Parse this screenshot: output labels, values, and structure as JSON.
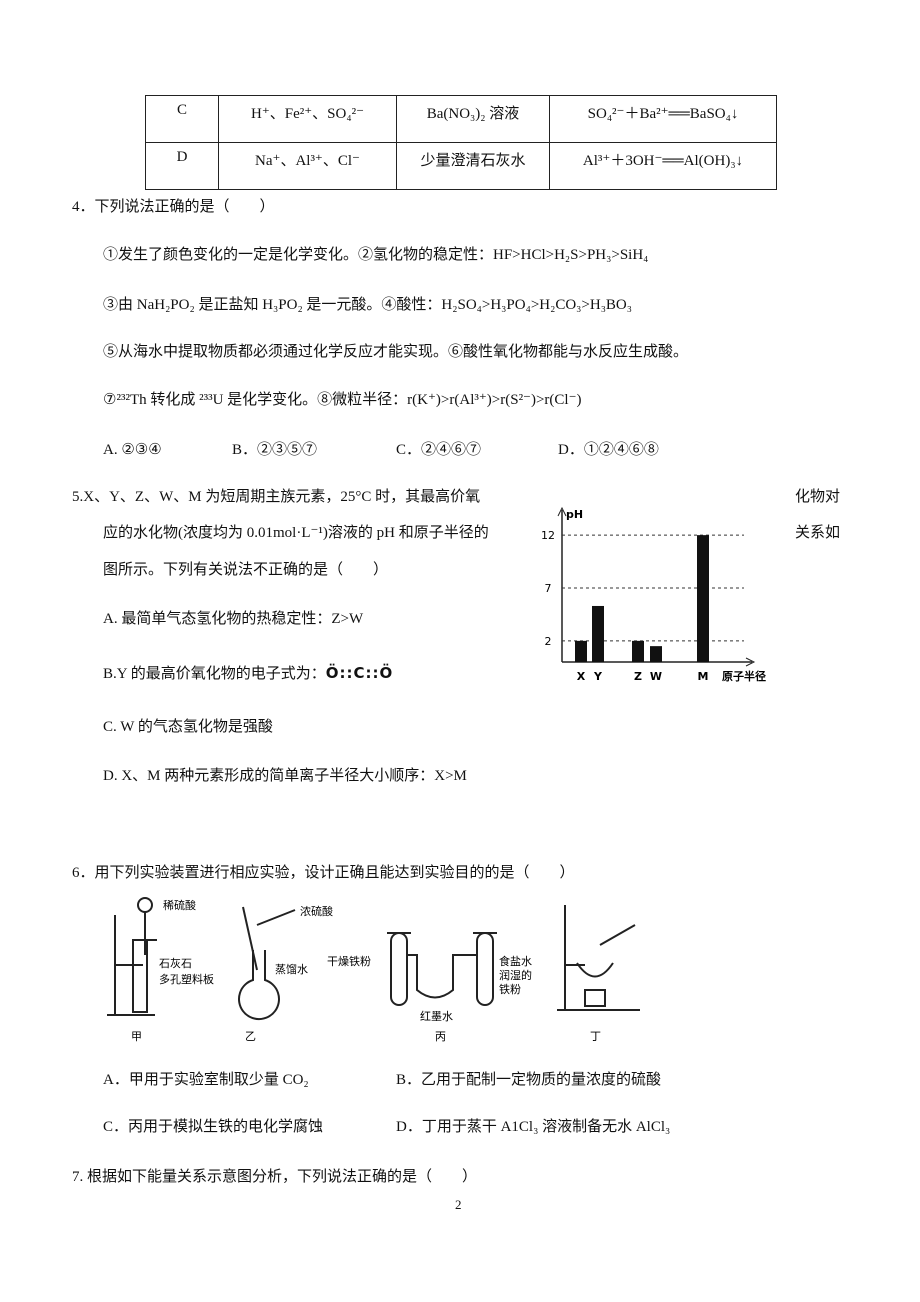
{
  "table": {
    "rows": [
      [
        "C",
        "H⁺、Fe²⁺、SO₄²⁻",
        "Ba(NO₃)₂ 溶液",
        "SO₄²⁻＋Ba²⁺══BaSO₄↓"
      ],
      [
        "D",
        "Na⁺、Al³⁺、Cl⁻",
        "少量澄清石灰水",
        "Al³⁺＋3OH⁻══Al(OH)₃↓"
      ]
    ]
  },
  "q4": {
    "stem": "4．下列说法正确的是（　　）",
    "items": [
      "①发生了颜色变化的一定是化学变化。②氢化物的稳定性：HF>HCl>H₂S>PH₃>SiH₄",
      "③由 NaH₂PO₂ 是正盐知 H₃PO₂ 是一元酸。④酸性：H₂SO₄>H₃PO₄>H₂CO₃>H₃BO₃",
      "⑤从海水中提取物质都必须通过化学反应才能实现。⑥酸性氧化物都能与水反应生成酸。",
      "⑦²³²Th 转化成 ²³³U 是化学变化。⑧微粒半径：r(K⁺)>r(Al³⁺)>r(S²⁻)>r(Cl⁻)"
    ],
    "options": [
      "A. ②③④",
      "B．②③⑤⑦",
      "C．②④⑥⑦",
      "D．①②④⑥⑧"
    ]
  },
  "q5": {
    "stem": [
      "5.X、Y、Z、W、M 为短周期主族元素，25°C 时，其最高价氧",
      "化物对",
      "应的水化物(浓度均为 0.01mol·L⁻¹)溶液的 pH 和原子半径的",
      "关系如",
      "图所示。下列有关说法不正确的是（　　）"
    ],
    "options": [
      "A. 最简单气态氢化物的热稳定性：Z>W",
      "B.Y 的最高价氧化物的电子式为：",
      "C. W 的气态氢化物是强酸",
      "D. X、M 两种元素形成的简单离子半径大小顺序：X>M"
    ],
    "formula": "Ö::C::Ö"
  },
  "chart_data": {
    "type": "bar",
    "y_label": "pH",
    "x_label": "原子半径",
    "categories": [
      "X",
      "Y",
      "Z",
      "W",
      "M"
    ],
    "values": [
      2,
      5.3,
      2,
      1.5,
      12
    ],
    "color": "#111111",
    "ylim": [
      0,
      14
    ],
    "yticks": [
      2,
      7,
      12
    ],
    "grid": true
  },
  "q6": {
    "stem": "6．用下列实验装置进行相应实验，设计正确且能达到实验目的的是（　　）",
    "labels": {
      "jia": [
        "稀硫酸",
        "石灰石",
        "多孔塑料板",
        "甲"
      ],
      "yi": [
        "浓硫酸",
        "蒸馏水",
        "乙"
      ],
      "bing": [
        "干燥铁粉",
        "红墨水",
        "食盐水",
        "润湿的",
        "铁粉",
        "丙"
      ],
      "ding": [
        "丁"
      ]
    },
    "options": [
      "A．甲用于实验室制取少量 CO₂",
      "B．乙用于配制一定物质的量浓度的硫酸",
      "C．丙用于模拟生铁的电化学腐蚀",
      "D．丁用于蒸干 A1Cl₃ 溶液制备无水 AlCl₃"
    ]
  },
  "q7": {
    "stem": "7. 根据如下能量关系示意图分析，下列说法正确的是（　　）"
  },
  "page_number": "2"
}
